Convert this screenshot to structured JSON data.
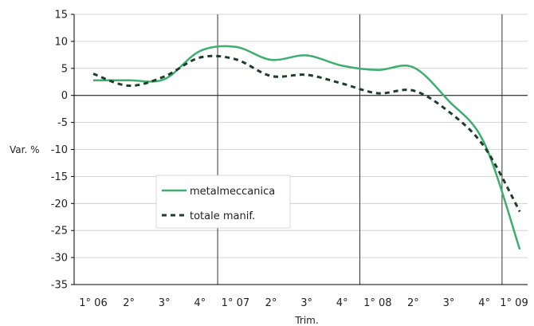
{
  "chart_data": {
    "type": "line",
    "xlabel": "Trim.",
    "ylabel": "Var. %",
    "ylim": [
      -35,
      15
    ],
    "yticks": [
      15,
      10,
      5,
      0,
      -5,
      -10,
      -15,
      -20,
      -25,
      -30,
      -35
    ],
    "categories": [
      "1° 06",
      "2°",
      "3°",
      "4°",
      "1° 07",
      "2°",
      "3°",
      "4°",
      "1° 08",
      "2°",
      "3°",
      "4°",
      "1° 09"
    ],
    "year_separators_after": [
      "4°",
      "4°",
      "4°"
    ],
    "grid": "horizontal",
    "legend_position": "lower-left",
    "series": [
      {
        "name": "metalmeccanica",
        "style": "solid",
        "color": "#3cae6e",
        "values": [
          2.8,
          2.8,
          3.0,
          8.2,
          9.0,
          6.6,
          7.4,
          5.5,
          4.7,
          5.2,
          -1.0,
          -8.8,
          -28.5
        ]
      },
      {
        "name": "totale manif.",
        "style": "dashed",
        "color": "#1e3d2b",
        "values": [
          4.0,
          1.8,
          3.5,
          7.0,
          6.7,
          3.6,
          3.8,
          2.2,
          0.4,
          0.9,
          -3.0,
          -9.5,
          -21.5
        ]
      }
    ]
  }
}
